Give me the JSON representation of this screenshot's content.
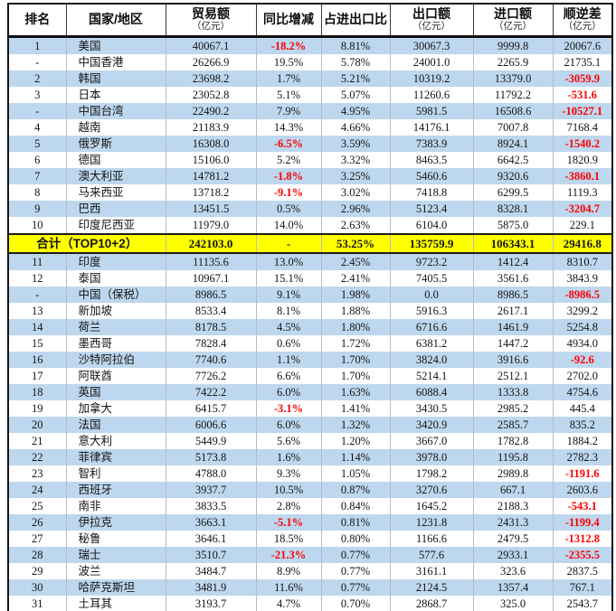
{
  "colors": {
    "row_highlight_blue": "#BDD7EE",
    "total_row_yellow": "#FFFF00",
    "negative_red": "#FF0000",
    "cutoff_row_orange": "#E8731F",
    "grid_line": "#b8bcc2",
    "outer_border": "#161616"
  },
  "chart_data": {
    "type": "table",
    "columns": [
      {
        "label": "排名",
        "unit": ""
      },
      {
        "label": "国家/地区",
        "unit": ""
      },
      {
        "label": "贸易额",
        "unit": "（亿元）"
      },
      {
        "label": "同比增减",
        "unit": ""
      },
      {
        "label": "占进出口比",
        "unit": ""
      },
      {
        "label": "出口额",
        "unit": "（亿元）"
      },
      {
        "label": "进口额",
        "unit": "（亿元）"
      },
      {
        "label": "顺逆差",
        "unit": "（亿元）"
      }
    ],
    "rows_top": [
      {
        "rank": "1",
        "country": "美国",
        "trade": "40067.1",
        "yoy": "-18.2%",
        "share": "8.81%",
        "export": "30067.3",
        "import": "9999.8",
        "balance": "20067.6"
      },
      {
        "rank": "-",
        "country": "中国香港",
        "trade": "26266.9",
        "yoy": "19.5%",
        "share": "5.78%",
        "export": "24001.0",
        "import": "2265.9",
        "balance": "21735.1"
      },
      {
        "rank": "2",
        "country": "韩国",
        "trade": "23698.2",
        "yoy": "1.7%",
        "share": "5.21%",
        "export": "10319.2",
        "import": "13379.0",
        "balance": "-3059.9"
      },
      {
        "rank": "3",
        "country": "日本",
        "trade": "23052.8",
        "yoy": "5.1%",
        "share": "5.07%",
        "export": "11260.6",
        "import": "11792.2",
        "balance": "-531.6"
      },
      {
        "rank": "-",
        "country": "中国台湾",
        "trade": "22490.2",
        "yoy": "7.9%",
        "share": "4.95%",
        "export": "5981.5",
        "import": "16508.6",
        "balance": "-10527.1"
      },
      {
        "rank": "4",
        "country": "越南",
        "trade": "21183.9",
        "yoy": "14.3%",
        "share": "4.66%",
        "export": "14176.1",
        "import": "7007.8",
        "balance": "7168.4"
      },
      {
        "rank": "5",
        "country": "俄罗斯",
        "trade": "16308.0",
        "yoy": "-6.5%",
        "share": "3.59%",
        "export": "7383.9",
        "import": "8924.1",
        "balance": "-1540.2"
      },
      {
        "rank": "6",
        "country": "德国",
        "trade": "15106.0",
        "yoy": "5.2%",
        "share": "3.32%",
        "export": "8463.5",
        "import": "6642.5",
        "balance": "1820.9"
      },
      {
        "rank": "7",
        "country": "澳大利亚",
        "trade": "14781.2",
        "yoy": "-1.8%",
        "share": "3.25%",
        "export": "5460.6",
        "import": "9320.6",
        "balance": "-3860.1"
      },
      {
        "rank": "8",
        "country": "马来西亚",
        "trade": "13718.2",
        "yoy": "-9.1%",
        "share": "3.02%",
        "export": "7418.8",
        "import": "6299.5",
        "balance": "1119.3"
      },
      {
        "rank": "9",
        "country": "巴西",
        "trade": "13451.5",
        "yoy": "0.5%",
        "share": "2.96%",
        "export": "5123.4",
        "import": "8328.1",
        "balance": "-3204.7"
      },
      {
        "rank": "10",
        "country": "印度尼西亚",
        "trade": "11979.0",
        "yoy": "14.0%",
        "share": "2.63%",
        "export": "6104.0",
        "import": "5875.0",
        "balance": "229.1"
      }
    ],
    "total_row": {
      "label": "合计（TOP10+2）",
      "trade": "242103.0",
      "yoy": "-",
      "share": "53.25%",
      "export": "135759.9",
      "import": "106343.1",
      "balance": "29416.8"
    },
    "rows_bottom": [
      {
        "rank": "11",
        "country": "印度",
        "trade": "11135.6",
        "yoy": "13.0%",
        "share": "2.45%",
        "export": "9723.2",
        "import": "1412.4",
        "balance": "8310.7"
      },
      {
        "rank": "12",
        "country": "泰国",
        "trade": "10967.1",
        "yoy": "15.1%",
        "share": "2.41%",
        "export": "7405.5",
        "import": "3561.6",
        "balance": "3843.9"
      },
      {
        "rank": "-",
        "country": "中国（保税）",
        "trade": "8986.5",
        "yoy": "9.1%",
        "share": "1.98%",
        "export": "0.0",
        "import": "8986.5",
        "balance": "-8986.5"
      },
      {
        "rank": "13",
        "country": "新加坡",
        "trade": "8533.4",
        "yoy": "8.1%",
        "share": "1.88%",
        "export": "5916.3",
        "import": "2617.1",
        "balance": "3299.2"
      },
      {
        "rank": "14",
        "country": "荷兰",
        "trade": "8178.5",
        "yoy": "4.5%",
        "share": "1.80%",
        "export": "6716.6",
        "import": "1461.9",
        "balance": "5254.8"
      },
      {
        "rank": "15",
        "country": "墨西哥",
        "trade": "7828.4",
        "yoy": "0.6%",
        "share": "1.72%",
        "export": "6381.2",
        "import": "1447.2",
        "balance": "4934.0"
      },
      {
        "rank": "16",
        "country": "沙特阿拉伯",
        "trade": "7740.6",
        "yoy": "1.1%",
        "share": "1.70%",
        "export": "3824.0",
        "import": "3916.6",
        "balance": "-92.6"
      },
      {
        "rank": "17",
        "country": "阿联酋",
        "trade": "7726.2",
        "yoy": "6.6%",
        "share": "1.70%",
        "export": "5214.1",
        "import": "2512.1",
        "balance": "2702.0"
      },
      {
        "rank": "18",
        "country": "英国",
        "trade": "7422.2",
        "yoy": "6.0%",
        "share": "1.63%",
        "export": "6088.4",
        "import": "1333.8",
        "balance": "4754.6"
      },
      {
        "rank": "19",
        "country": "加拿大",
        "trade": "6415.7",
        "yoy": "-3.1%",
        "share": "1.41%",
        "export": "3430.5",
        "import": "2985.2",
        "balance": "445.4"
      },
      {
        "rank": "20",
        "country": "法国",
        "trade": "6006.6",
        "yoy": "6.0%",
        "share": "1.32%",
        "export": "3420.9",
        "import": "2585.7",
        "balance": "835.2"
      },
      {
        "rank": "21",
        "country": "意大利",
        "trade": "5449.9",
        "yoy": "5.6%",
        "share": "1.20%",
        "export": "3667.0",
        "import": "1782.8",
        "balance": "1884.2"
      },
      {
        "rank": "22",
        "country": "菲律宾",
        "trade": "5173.8",
        "yoy": "1.6%",
        "share": "1.14%",
        "export": "3978.0",
        "import": "1195.8",
        "balance": "2782.3"
      },
      {
        "rank": "23",
        "country": "智利",
        "trade": "4788.0",
        "yoy": "9.3%",
        "share": "1.05%",
        "export": "1798.2",
        "import": "2989.8",
        "balance": "-1191.6"
      },
      {
        "rank": "24",
        "country": "西班牙",
        "trade": "3937.7",
        "yoy": "10.5%",
        "share": "0.87%",
        "export": "3270.6",
        "import": "667.1",
        "balance": "2603.6"
      },
      {
        "rank": "25",
        "country": "南非",
        "trade": "3833.5",
        "yoy": "2.8%",
        "share": "0.84%",
        "export": "1645.2",
        "import": "2188.3",
        "balance": "-543.1"
      },
      {
        "rank": "26",
        "country": "伊拉克",
        "trade": "3663.1",
        "yoy": "-5.1%",
        "share": "0.81%",
        "export": "1231.8",
        "import": "2431.3",
        "balance": "-1199.4"
      },
      {
        "rank": "27",
        "country": "秘鲁",
        "trade": "3646.1",
        "yoy": "18.5%",
        "share": "0.80%",
        "export": "1166.6",
        "import": "2479.5",
        "balance": "-1312.8"
      },
      {
        "rank": "28",
        "country": "瑞士",
        "trade": "3510.7",
        "yoy": "-21.3%",
        "share": "0.77%",
        "export": "577.6",
        "import": "2933.1",
        "balance": "-2355.5"
      },
      {
        "rank": "29",
        "country": "波兰",
        "trade": "3484.7",
        "yoy": "8.9%",
        "share": "0.77%",
        "export": "3161.1",
        "import": "323.6",
        "balance": "2837.5"
      },
      {
        "rank": "30",
        "country": "哈萨克斯坦",
        "trade": "3481.9",
        "yoy": "11.6%",
        "share": "0.77%",
        "export": "2124.5",
        "import": "1357.4",
        "balance": "767.1"
      },
      {
        "rank": "31",
        "country": "土耳其",
        "trade": "3193.7",
        "yoy": "4.7%",
        "share": "0.70%",
        "export": "2868.7",
        "import": "325.0",
        "balance": "2543.7"
      }
    ]
  }
}
